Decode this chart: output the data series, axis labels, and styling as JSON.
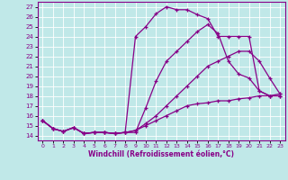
{
  "xlabel": "Windchill (Refroidissement éolien,°C)",
  "xlim": [
    -0.5,
    23.5
  ],
  "ylim": [
    13.5,
    27.5
  ],
  "yticks": [
    14,
    15,
    16,
    17,
    18,
    19,
    20,
    21,
    22,
    23,
    24,
    25,
    26,
    27
  ],
  "xticks": [
    0,
    1,
    2,
    3,
    4,
    5,
    6,
    7,
    8,
    9,
    10,
    11,
    12,
    13,
    14,
    15,
    16,
    17,
    18,
    19,
    20,
    21,
    22,
    23
  ],
  "bg_color": "#c0e8e8",
  "line_color": "#880088",
  "grid_color": "#ffffff",
  "lines": [
    {
      "x": [
        0,
        1,
        2,
        3,
        4,
        5,
        6,
        7,
        8,
        9,
        10,
        11,
        12,
        13,
        14,
        15,
        16,
        17,
        18,
        19,
        20,
        21,
        22,
        23
      ],
      "y": [
        15.5,
        14.7,
        14.4,
        14.8,
        14.2,
        14.3,
        14.3,
        14.2,
        14.3,
        24.0,
        25.0,
        26.3,
        27.0,
        26.7,
        26.7,
        26.2,
        25.8,
        24.0,
        24.0,
        24.0,
        24.0,
        18.5,
        18.0,
        18.0
      ]
    },
    {
      "x": [
        0,
        1,
        2,
        3,
        4,
        5,
        6,
        7,
        8,
        9,
        10,
        11,
        12,
        13,
        14,
        15,
        16,
        17,
        18,
        19,
        20,
        21,
        22,
        23
      ],
      "y": [
        15.5,
        14.7,
        14.4,
        14.8,
        14.2,
        14.3,
        14.3,
        14.2,
        14.3,
        14.3,
        16.8,
        19.5,
        21.5,
        22.5,
        23.5,
        24.5,
        25.2,
        24.3,
        21.5,
        20.2,
        19.8,
        18.5,
        18.0,
        18.0
      ]
    },
    {
      "x": [
        0,
        1,
        2,
        3,
        4,
        5,
        6,
        7,
        8,
        9,
        10,
        11,
        12,
        13,
        14,
        15,
        16,
        17,
        18,
        19,
        20,
        21,
        22,
        23
      ],
      "y": [
        15.5,
        14.7,
        14.4,
        14.8,
        14.2,
        14.3,
        14.3,
        14.2,
        14.3,
        14.5,
        15.2,
        16.0,
        17.0,
        18.0,
        19.0,
        20.0,
        21.0,
        21.5,
        22.0,
        22.5,
        22.5,
        21.5,
        19.8,
        18.2
      ]
    },
    {
      "x": [
        0,
        1,
        2,
        3,
        4,
        5,
        6,
        7,
        8,
        9,
        10,
        11,
        12,
        13,
        14,
        15,
        16,
        17,
        18,
        19,
        20,
        21,
        22,
        23
      ],
      "y": [
        15.5,
        14.7,
        14.4,
        14.8,
        14.2,
        14.3,
        14.3,
        14.2,
        14.3,
        14.5,
        15.0,
        15.5,
        16.0,
        16.5,
        17.0,
        17.2,
        17.3,
        17.5,
        17.5,
        17.7,
        17.8,
        18.0,
        18.0,
        18.2
      ]
    }
  ]
}
